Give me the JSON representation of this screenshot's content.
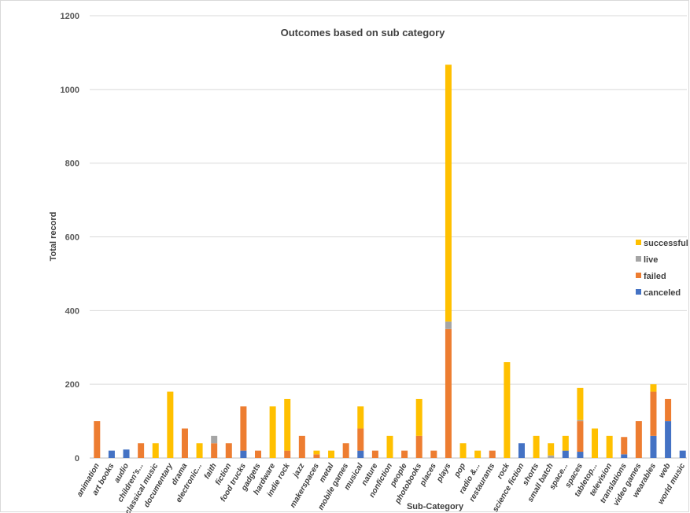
{
  "chart_data": {
    "type": "bar",
    "stacked": true,
    "title": "Outcomes based on sub category",
    "xlabel": "Sub-Category",
    "ylabel": "Total  record",
    "ylim": [
      0,
      1200
    ],
    "yticks": [
      0,
      200,
      400,
      600,
      800,
      1000,
      1200
    ],
    "grid": true,
    "legend_position": "right",
    "categories": [
      "animation",
      "art books",
      "audio",
      "children's...",
      "classical music",
      "documentary",
      "drama",
      "electronic...",
      "faith",
      "fiction",
      "food trucks",
      "gadgets",
      "hardware",
      "indie rock",
      "jazz",
      "makerspaces",
      "metal",
      "mobile games",
      "musical",
      "nature",
      "nonfiction",
      "people",
      "photobooks",
      "places",
      "plays",
      "pop",
      "radio &...",
      "restaurants",
      "rock",
      "science fiction",
      "shorts",
      "small batch",
      "space...",
      "spaces",
      "tabletop...",
      "television",
      "translations",
      "video games",
      "wearables",
      "web",
      "world music"
    ],
    "series": [
      {
        "name": "canceled",
        "color": "#4472C4",
        "values": [
          0,
          20,
          23,
          0,
          0,
          0,
          0,
          0,
          0,
          0,
          20,
          0,
          0,
          0,
          0,
          0,
          0,
          0,
          20,
          0,
          0,
          0,
          0,
          0,
          0,
          0,
          0,
          0,
          0,
          40,
          0,
          0,
          20,
          17,
          0,
          0,
          10,
          0,
          60,
          100,
          20
        ]
      },
      {
        "name": "failed",
        "color": "#ED7D31",
        "values": [
          100,
          0,
          0,
          40,
          0,
          0,
          80,
          0,
          40,
          40,
          120,
          20,
          0,
          20,
          60,
          10,
          0,
          40,
          60,
          20,
          0,
          20,
          60,
          20,
          350,
          0,
          0,
          20,
          0,
          0,
          0,
          0,
          0,
          83,
          0,
          0,
          47,
          100,
          120,
          60,
          0
        ]
      },
      {
        "name": "live",
        "color": "#A5A5A5",
        "values": [
          0,
          0,
          0,
          0,
          0,
          0,
          0,
          0,
          20,
          0,
          0,
          0,
          0,
          0,
          0,
          0,
          0,
          0,
          0,
          0,
          0,
          0,
          0,
          0,
          20,
          0,
          0,
          0,
          0,
          0,
          0,
          7,
          0,
          3,
          0,
          0,
          0,
          0,
          0,
          0,
          0
        ]
      },
      {
        "name": "successful",
        "color": "#FFC000",
        "values": [
          0,
          0,
          0,
          0,
          40,
          180,
          0,
          40,
          0,
          0,
          0,
          0,
          140,
          140,
          0,
          10,
          20,
          0,
          60,
          0,
          60,
          0,
          100,
          0,
          697,
          40,
          20,
          0,
          260,
          0,
          60,
          33,
          40,
          87,
          80,
          60,
          0,
          0,
          20,
          0,
          0
        ]
      }
    ],
    "legend_order": [
      "successful",
      "live",
      "failed",
      "canceled"
    ]
  }
}
